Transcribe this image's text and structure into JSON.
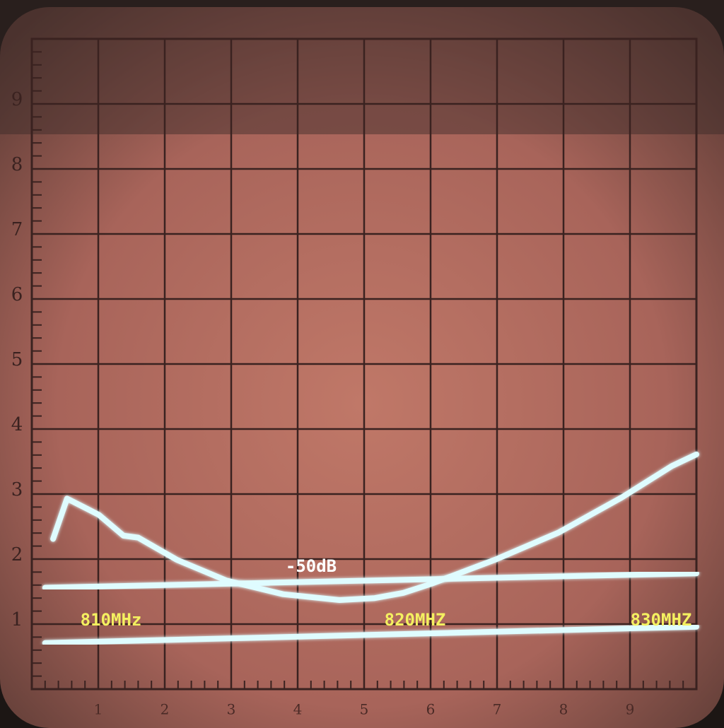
{
  "chart_data": {
    "type": "line",
    "xlim": [
      0,
      10
    ],
    "ylim": [
      0,
      10
    ],
    "xticks": [
      1,
      2,
      3,
      4,
      5,
      6,
      7,
      8,
      9
    ],
    "yticks": [
      1,
      2,
      3,
      4,
      5,
      6,
      7,
      8,
      9
    ],
    "grid": true,
    "annotations": [
      {
        "text": "-50dB",
        "color": "#ffffff"
      },
      {
        "text": "810MHz",
        "color": "#f4f060"
      },
      {
        "text": "820MHZ",
        "color": "#f4f060"
      },
      {
        "text": "830MHZ",
        "color": "#f4f060"
      }
    ],
    "series": [
      {
        "color": "#dffcff",
        "x": [
          0.32,
          0.53,
          1.01,
          1.38,
          1.6,
          2.18,
          2.93,
          3.78,
          4.63,
          5.16,
          5.59,
          6.01,
          6.97,
          7.93,
          8.88,
          9.63,
          10
        ],
        "values": [
          2.31,
          2.93,
          2.68,
          2.36,
          2.33,
          1.99,
          1.67,
          1.46,
          1.37,
          1.4,
          1.48,
          1.62,
          1.99,
          2.41,
          2.95,
          3.43,
          3.61
        ]
      },
      {
        "color": "#dffcff",
        "x": [
          0.2,
          10
        ],
        "values": [
          1.56,
          1.78
        ]
      },
      {
        "color": "#dffcff",
        "x": [
          0.2,
          10
        ],
        "values": [
          0.71,
          0.96
        ]
      }
    ]
  }
}
